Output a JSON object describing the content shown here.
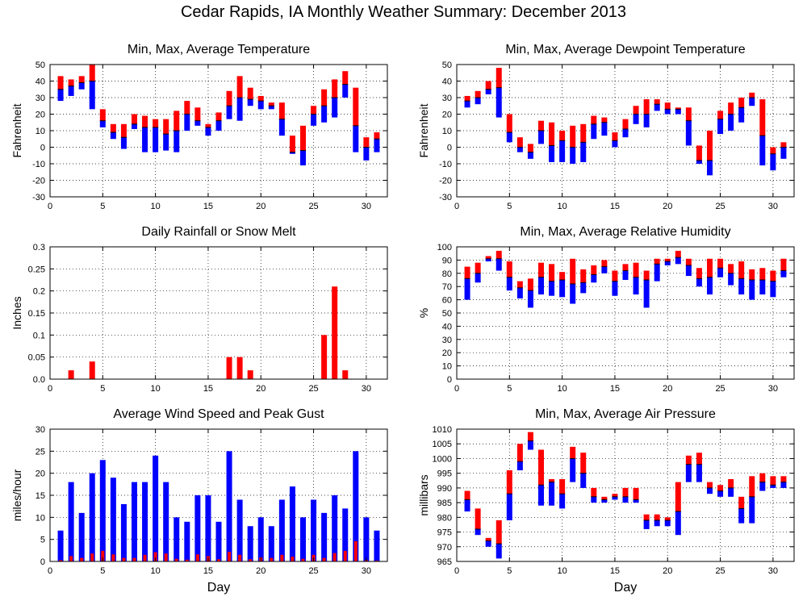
{
  "title": "Cedar Rapids, IA Monthly Weather Summary: December 2013",
  "colors": {
    "max_bar": "#ff0000",
    "min_bar": "#0000ff",
    "avg_mark": "#000000",
    "rain": "#ff0000",
    "wind_avg": "#0000ff",
    "wind_gust": "#ff0000"
  },
  "chart_data": [
    {
      "id": "temp",
      "type": "bar",
      "title": "Min, Max, Average Temperature",
      "ylabel": "Fahrenheit",
      "xlabel": "",
      "xlim": [
        0,
        32
      ],
      "ylim": [
        -30,
        50
      ],
      "xticks": [
        0,
        5,
        10,
        15,
        20,
        25,
        30
      ],
      "yticks": [
        -30,
        -20,
        -10,
        0,
        10,
        20,
        30,
        40,
        50
      ],
      "grid": true,
      "x": [
        1,
        2,
        3,
        4,
        5,
        6,
        7,
        8,
        9,
        10,
        11,
        12,
        13,
        14,
        15,
        16,
        17,
        18,
        19,
        20,
        21,
        22,
        23,
        24,
        25,
        26,
        27,
        28,
        29,
        30,
        31
      ],
      "max": [
        43,
        41,
        43,
        50,
        23,
        14,
        14,
        20,
        19,
        17,
        17,
        22,
        28,
        24,
        14,
        21,
        34,
        43,
        36,
        31,
        27,
        27,
        7,
        13,
        25,
        35,
        41,
        46,
        36,
        6,
        9
      ],
      "avg": [
        35,
        37,
        39,
        40,
        16,
        9,
        6,
        14,
        12,
        12,
        8,
        10,
        20,
        16,
        12,
        16,
        25,
        30,
        29,
        28,
        25,
        17,
        -3,
        -2,
        20,
        25,
        30,
        38,
        13,
        0,
        5
      ],
      "min": [
        28,
        31,
        35,
        23,
        12,
        5,
        -1,
        11,
        -3,
        -3,
        -2,
        -3,
        10,
        13,
        7,
        10,
        17,
        16,
        25,
        23,
        23,
        7,
        -4,
        -11,
        13,
        15,
        18,
        30,
        -3,
        -8,
        -3
      ]
    },
    {
      "id": "dewpoint",
      "type": "bar",
      "title": "Min, Max, Average Dewpoint Temperature",
      "ylabel": "Fahrenheit",
      "xlabel": "",
      "xlim": [
        0,
        32
      ],
      "ylim": [
        -30,
        50
      ],
      "xticks": [
        0,
        5,
        10,
        15,
        20,
        25,
        30
      ],
      "yticks": [
        -30,
        -20,
        -10,
        0,
        10,
        20,
        30,
        40,
        50
      ],
      "grid": true,
      "x": [
        1,
        2,
        3,
        4,
        5,
        6,
        7,
        8,
        9,
        10,
        11,
        12,
        13,
        14,
        15,
        16,
        17,
        18,
        19,
        20,
        21,
        22,
        23,
        24,
        25,
        26,
        27,
        28,
        29,
        30,
        31
      ],
      "max": [
        31,
        34,
        40,
        48,
        20,
        6,
        2,
        16,
        15,
        10,
        13,
        14,
        19,
        18,
        9,
        17,
        25,
        29,
        29,
        27,
        24,
        24,
        1,
        10,
        22,
        27,
        30,
        33,
        29,
        0,
        3
      ],
      "avg": [
        28,
        30,
        35,
        36,
        9,
        0,
        -3,
        10,
        1,
        4,
        0,
        3,
        14,
        15,
        4,
        11,
        20,
        20,
        26,
        23,
        23,
        16,
        -8,
        -8,
        17,
        20,
        24,
        30,
        7,
        -4,
        0
      ],
      "min": [
        24,
        26,
        32,
        18,
        3,
        -3,
        -7,
        2,
        -9,
        -9,
        -10,
        -9,
        5,
        7,
        0,
        6,
        14,
        12,
        22,
        20,
        20,
        1,
        -10,
        -17,
        8,
        10,
        15,
        25,
        -11,
        -14,
        -7
      ]
    },
    {
      "id": "rain",
      "type": "bar",
      "title": "Daily Rainfall or Snow Melt",
      "ylabel": "Inches",
      "xlabel": "",
      "xlim": [
        0,
        32
      ],
      "ylim": [
        0,
        0.3
      ],
      "xticks": [
        0,
        5,
        10,
        15,
        20,
        25,
        30
      ],
      "yticks": [
        0.0,
        0.05,
        0.1,
        0.15,
        0.2,
        0.25,
        0.3
      ],
      "ytick_labels": [
        "0.0",
        "0.05",
        "0.1",
        "0.15",
        "0.2",
        "0.25",
        "0.3"
      ],
      "grid": true,
      "x": [
        2,
        4,
        17,
        18,
        19,
        26,
        27,
        28
      ],
      "values": [
        0.02,
        0.04,
        0.05,
        0.05,
        0.02,
        0.1,
        0.21,
        0.02
      ]
    },
    {
      "id": "rh",
      "type": "bar",
      "title": "Min, Max, Average Relative Humidity",
      "ylabel": "%",
      "xlabel": "",
      "xlim": [
        0,
        32
      ],
      "ylim": [
        0,
        100
      ],
      "xticks": [
        0,
        5,
        10,
        15,
        20,
        25,
        30
      ],
      "yticks": [
        0,
        10,
        20,
        30,
        40,
        50,
        60,
        70,
        80,
        90,
        100
      ],
      "grid": true,
      "x": [
        1,
        2,
        3,
        4,
        5,
        6,
        7,
        8,
        9,
        10,
        11,
        12,
        13,
        14,
        15,
        16,
        17,
        18,
        19,
        20,
        21,
        22,
        23,
        24,
        25,
        26,
        27,
        28,
        29,
        30,
        31
      ],
      "max": [
        85,
        88,
        93,
        97,
        89,
        74,
        76,
        88,
        87,
        81,
        91,
        83,
        86,
        90,
        82,
        87,
        88,
        82,
        91,
        91,
        97,
        91,
        84,
        91,
        91,
        87,
        89,
        83,
        84,
        82,
        91
      ],
      "avg": [
        76,
        80,
        91,
        91,
        77,
        69,
        67,
        77,
        74,
        75,
        72,
        73,
        79,
        85,
        74,
        82,
        77,
        75,
        87,
        89,
        92,
        86,
        76,
        77,
        84,
        80,
        76,
        75,
        75,
        74,
        82
      ],
      "min": [
        60,
        73,
        89,
        82,
        67,
        61,
        54,
        64,
        63,
        62,
        57,
        65,
        73,
        80,
        63,
        75,
        64,
        54,
        74,
        86,
        87,
        78,
        70,
        64,
        77,
        71,
        64,
        60,
        64,
        62,
        77
      ]
    },
    {
      "id": "wind",
      "type": "bar",
      "title": "Average Wind Speed and Peak Gust",
      "ylabel": "miles/hour",
      "xlabel": "Day",
      "xlim": [
        0,
        32
      ],
      "ylim": [
        0,
        30
      ],
      "xticks": [
        0,
        5,
        10,
        15,
        20,
        25,
        30
      ],
      "yticks": [
        0,
        5,
        10,
        15,
        20,
        25,
        30
      ],
      "grid": true,
      "x": [
        1,
        2,
        3,
        4,
        5,
        6,
        7,
        8,
        9,
        10,
        11,
        12,
        13,
        14,
        15,
        16,
        17,
        18,
        19,
        20,
        21,
        22,
        23,
        24,
        25,
        26,
        27,
        28,
        29,
        30,
        31
      ],
      "gust": [
        7,
        18,
        11,
        20,
        23,
        19,
        13,
        18,
        18,
        24,
        18,
        10,
        9,
        15,
        15,
        9,
        25,
        14,
        8,
        10,
        8,
        14,
        17,
        10,
        14,
        11,
        15,
        12,
        25,
        10,
        7
      ],
      "avg": [
        0.3,
        1.2,
        0.8,
        1.8,
        2.4,
        1.6,
        0.8,
        0.8,
        1.5,
        2.1,
        1.8,
        0.6,
        0.4,
        1.6,
        1.2,
        0.5,
        2.2,
        1.5,
        0.5,
        0.9,
        0.8,
        1.5,
        1.1,
        0.6,
        1.5,
        0.8,
        1.9,
        2.4,
        4.6,
        0.3,
        0.2
      ]
    },
    {
      "id": "pressure",
      "type": "bar",
      "title": "Min, Max, Average Air Pressure",
      "ylabel": "millibars",
      "xlabel": "Day",
      "xlim": [
        0,
        32
      ],
      "ylim": [
        965,
        1010
      ],
      "xticks": [
        0,
        5,
        10,
        15,
        20,
        25,
        30
      ],
      "yticks": [
        965,
        970,
        975,
        980,
        985,
        990,
        995,
        1000,
        1005,
        1010
      ],
      "grid": true,
      "x": [
        1,
        2,
        3,
        4,
        5,
        6,
        7,
        8,
        9,
        10,
        11,
        12,
        13,
        14,
        15,
        16,
        17,
        18,
        19,
        20,
        21,
        22,
        23,
        24,
        25,
        26,
        27,
        28,
        29,
        30,
        31
      ],
      "max": [
        989,
        983,
        973,
        979,
        996,
        1005,
        1009,
        1003,
        993,
        993,
        1004,
        1002,
        990,
        987,
        988,
        990,
        990,
        981,
        981,
        980,
        992,
        1001,
        1002,
        992,
        991,
        993,
        987,
        994,
        995,
        994,
        994
      ],
      "avg": [
        986,
        976,
        972,
        971,
        988,
        999,
        1006,
        991,
        992,
        988,
        1000,
        995,
        987,
        986,
        987,
        987,
        986,
        979,
        979,
        979,
        982,
        998,
        998,
        990,
        989,
        990,
        983,
        987,
        992,
        991,
        992
      ],
      "min": [
        982,
        974,
        970,
        966,
        979,
        996,
        1003,
        984,
        984,
        983,
        992,
        990,
        985,
        985,
        986,
        985,
        985,
        976,
        977,
        977,
        974,
        992,
        992,
        988,
        987,
        987,
        978,
        978,
        989,
        990,
        990
      ]
    }
  ]
}
